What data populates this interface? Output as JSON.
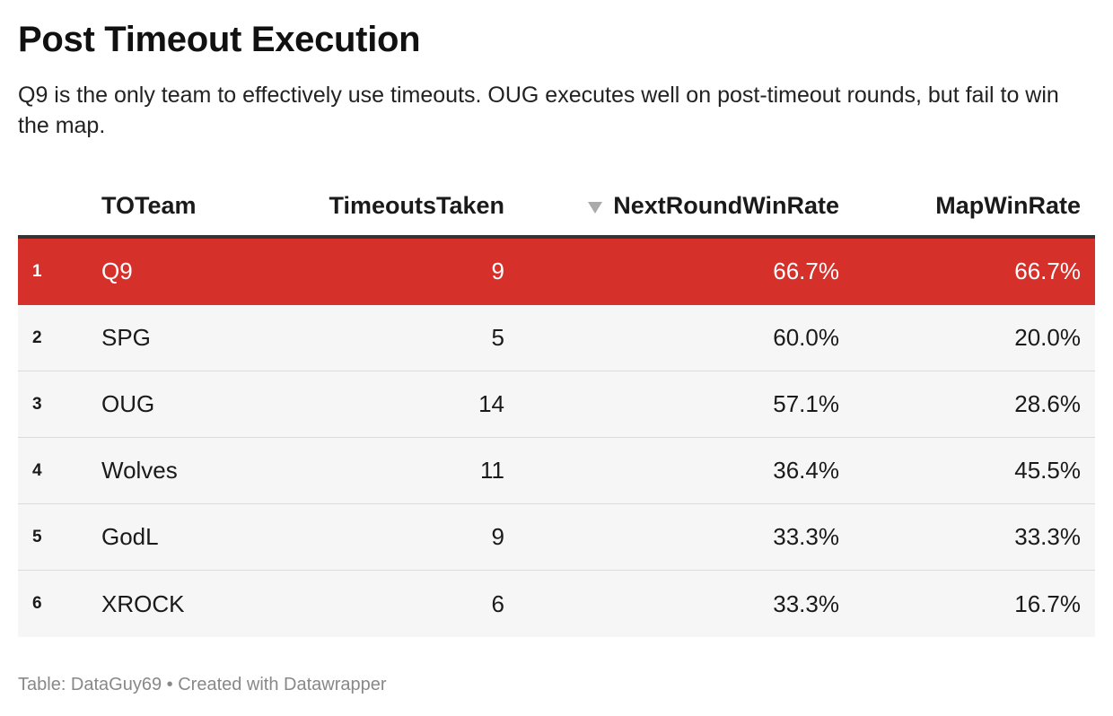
{
  "title": "Post Timeout Execution",
  "subtitle": "Q9 is the only team to effectively use timeouts. OUG executes well on post-timeout rounds, but fail to win the map.",
  "footer": "Table: DataGuy69 • Created with Datawrapper",
  "colors": {
    "highlight": "#d6302b",
    "row_bg": "#f6f6f6",
    "header_rule": "#333333",
    "sort_icon": "#aaaaaa"
  },
  "chart_data": {
    "type": "table",
    "columns": [
      "TOTeam",
      "TimeoutsTaken",
      "NextRoundWinRate",
      "MapWinRate"
    ],
    "sorted_by": "NextRoundWinRate",
    "sort_direction": "descending",
    "rows": [
      {
        "rank": "1",
        "team": "Q9",
        "timeouts": "9",
        "next_round": "66.7%",
        "map": "66.7%",
        "highlight": true
      },
      {
        "rank": "2",
        "team": "SPG",
        "timeouts": "5",
        "next_round": "60.0%",
        "map": "20.0%",
        "highlight": false
      },
      {
        "rank": "3",
        "team": "OUG",
        "timeouts": "14",
        "next_round": "57.1%",
        "map": "28.6%",
        "highlight": false
      },
      {
        "rank": "4",
        "team": "Wolves",
        "timeouts": "11",
        "next_round": "36.4%",
        "map": "45.5%",
        "highlight": false
      },
      {
        "rank": "5",
        "team": "GodL",
        "timeouts": "9",
        "next_round": "33.3%",
        "map": "33.3%",
        "highlight": false
      },
      {
        "rank": "6",
        "team": "XROCK",
        "timeouts": "6",
        "next_round": "33.3%",
        "map": "16.7%",
        "highlight": false
      }
    ]
  }
}
